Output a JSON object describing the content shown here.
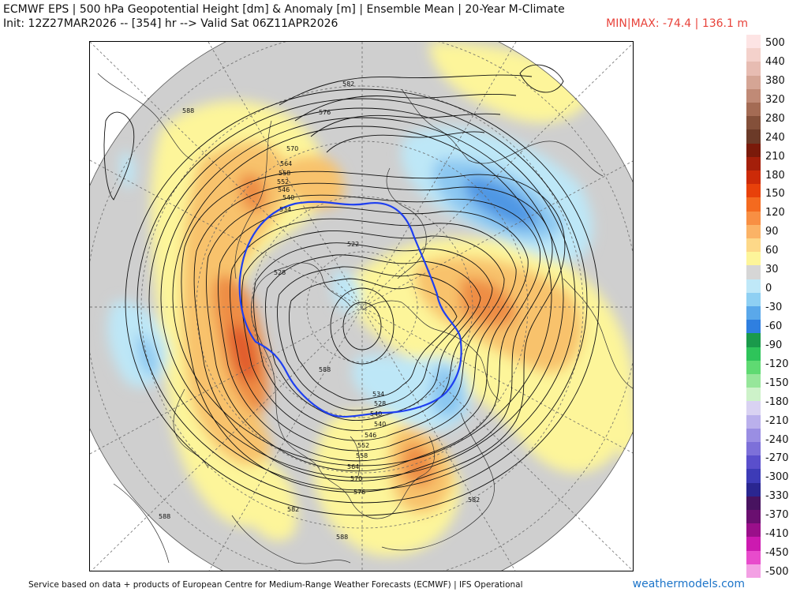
{
  "header": {
    "title": "ECMWF EPS | 500 hPa Geopotential Height [dm] & Anomaly [m] | Ensemble Mean | 20-Year M-Climate",
    "subtitle": "Init: 12Z27MAR2026 -- [354] hr --> Valid Sat 06Z11APR2026",
    "minmax": "MIN|MAX: -74.4 | 136.1 m"
  },
  "colors": {
    "neutral": "#cfcfcf",
    "pos_weak": "#fdf59a",
    "pos_mid": "#f8c26c",
    "pos_strong": "#ee8d45",
    "pos_max": "#e05a2a",
    "neg_weak": "#bde7f7",
    "neg_mid": "#8bc7f1",
    "neg_strong": "#4f97e4",
    "highlight_contour": "#1e3ff0"
  },
  "colorbar": {
    "colors": [
      "#fde4e4",
      "#f4d1cb",
      "#e7bcb2",
      "#d5a595",
      "#c08a76",
      "#a46b54",
      "#84503a",
      "#6b3a28",
      "#7a1a0a",
      "#a41f0a",
      "#cc2a08",
      "#e8410a",
      "#f46a1f",
      "#f88f43",
      "#fbb366",
      "#fdd888",
      "#fdf59a",
      "#d6d6d6",
      "#bfe8f8",
      "#8fd0f3",
      "#5aa8ea",
      "#2f7fe0",
      "#1a9a4b",
      "#2ec45a",
      "#5fda72",
      "#96e69a",
      "#cdf2c9",
      "#d9d2f2",
      "#bab0ec",
      "#9a8ee3",
      "#7d70d9",
      "#5a4fcc",
      "#3d3bb7",
      "#2a2690",
      "#481360",
      "#6a0f70",
      "#9a0f8a",
      "#cc1ab0",
      "#e84bcc",
      "#f3a0e4"
    ],
    "ticks": [
      "500",
      "440",
      "380",
      "320",
      "280",
      "240",
      "210",
      "180",
      "150",
      "120",
      "90",
      "60",
      "30",
      "0",
      "-30",
      "-60",
      "-90",
      "-120",
      "-150",
      "-180",
      "-210",
      "-240",
      "-270",
      "-300",
      "-330",
      "-370",
      "-410",
      "-450",
      "-500"
    ]
  },
  "map": {
    "contour_labels": [
      {
        "text": "582"
      },
      {
        "text": "576"
      },
      {
        "text": "588"
      },
      {
        "text": "570"
      },
      {
        "text": "564"
      },
      {
        "text": "558"
      },
      {
        "text": "552"
      },
      {
        "text": "546"
      },
      {
        "text": "540"
      },
      {
        "text": "534"
      },
      {
        "text": "522"
      },
      {
        "text": "528"
      },
      {
        "text": "534"
      },
      {
        "text": "528"
      },
      {
        "text": "540"
      },
      {
        "text": "546"
      },
      {
        "text": "552"
      },
      {
        "text": "558"
      },
      {
        "text": "564"
      },
      {
        "text": "570"
      },
      {
        "text": "576"
      },
      {
        "text": "582"
      },
      {
        "text": "588"
      },
      {
        "text": "582"
      },
      {
        "text": "588"
      },
      {
        "text": "588"
      },
      {
        "text": "540"
      }
    ]
  },
  "footer": {
    "credit": "Service based on data + products of European Centre for Medium-Range Weather Forecasts (ECMWF) | IFS Operational",
    "brand": "weathermodels.com"
  }
}
